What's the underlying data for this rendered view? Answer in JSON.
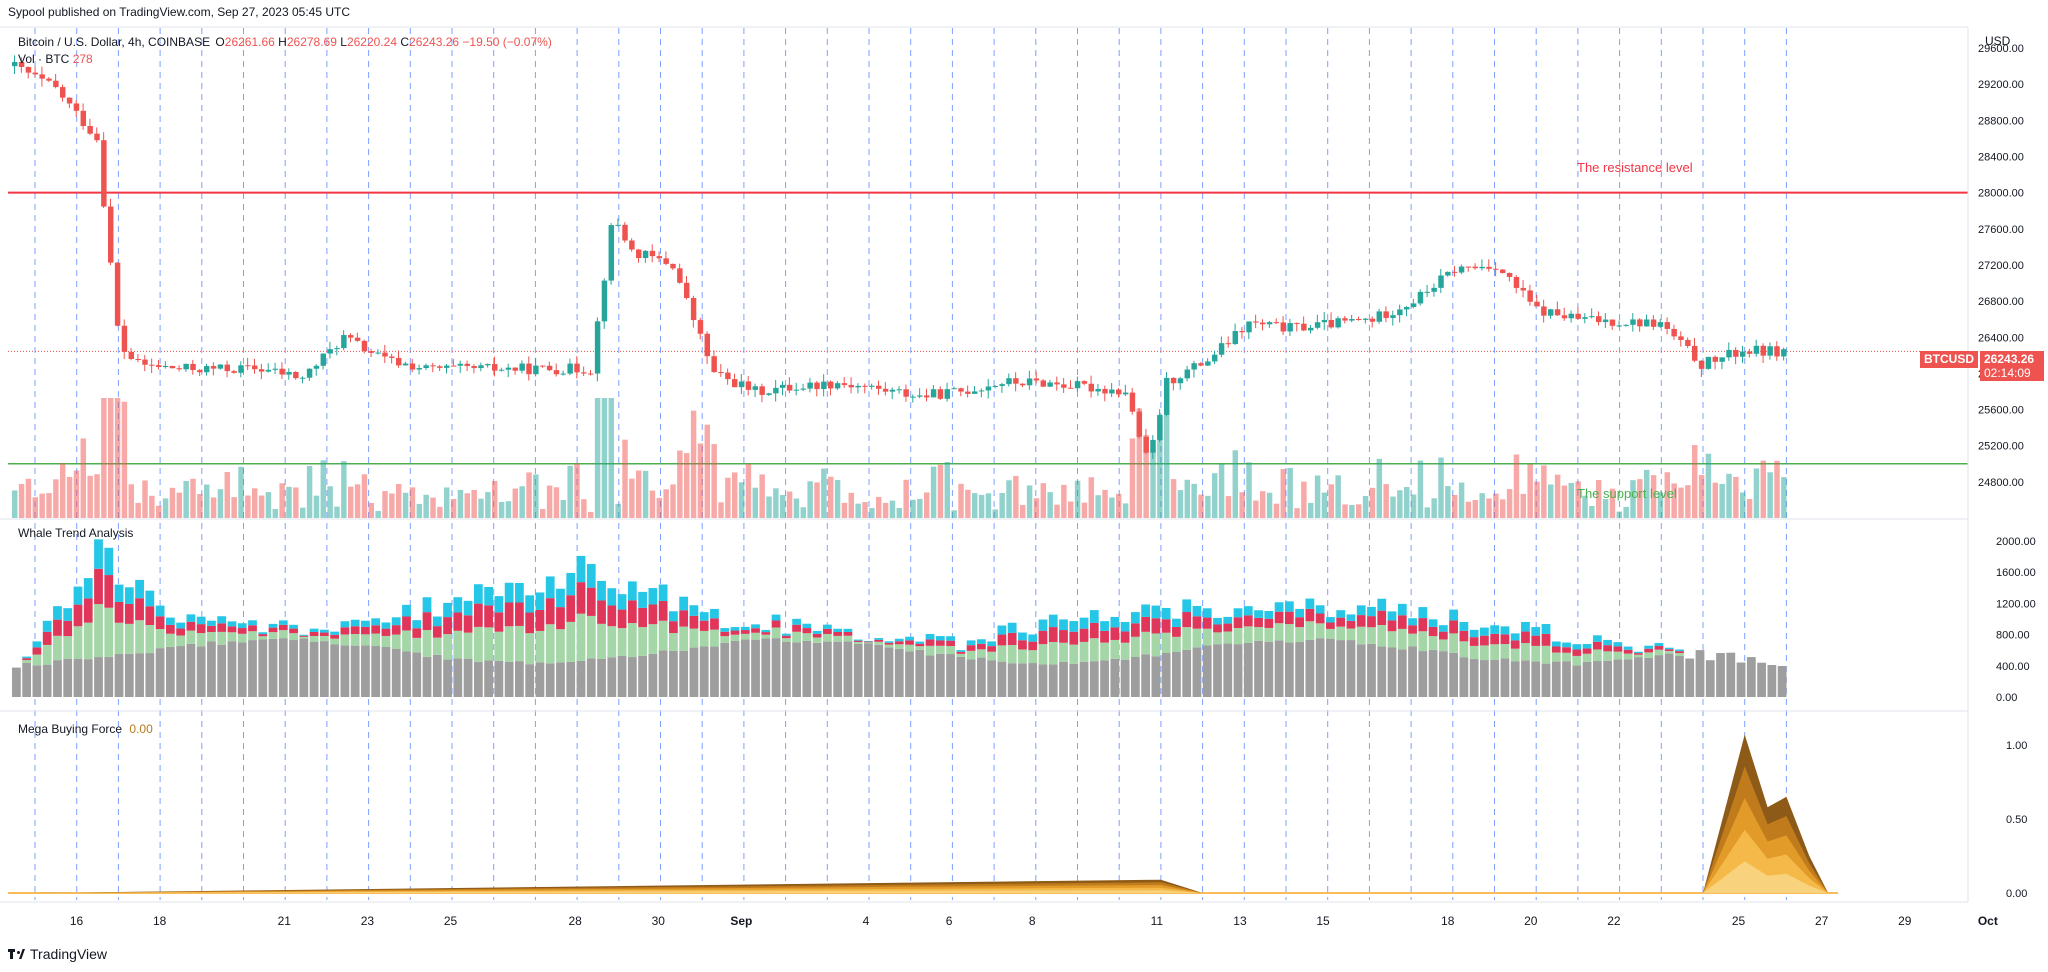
{
  "publisher": "Sypool published on TradingView.com, Sep 27, 2023 05:45 UTC",
  "legend": {
    "symbol": "Bitcoin / U.S. Dollar, 4h, COINBASE",
    "o_label": "O",
    "o": "26261.66",
    "h_label": "H",
    "h": "26278.69",
    "l_label": "L",
    "l": "26220.24",
    "c_label": "C",
    "c": "26243.26",
    "change": "−19.50 (−0.07%)",
    "vol_label": "Vol · BTC",
    "vol": "278"
  },
  "currency": "USD",
  "price_tag": {
    "symbol": "BTCUSD",
    "price": "26243.26",
    "countdown": "02:14:09"
  },
  "annotations": {
    "resistance": "The resistance level",
    "support": "The support level"
  },
  "panes": {
    "whale_title": "Whale Trend Analysis",
    "mega_title": "Mega Buying Force",
    "mega_value": "0.00"
  },
  "brand": "TradingView",
  "colors": {
    "up": "#26a69a",
    "down": "#ef5350",
    "resistance": "#f23645",
    "support": "#4caf50",
    "whale_gray": "#9e9e9e",
    "whale_green": "#a5d6a7",
    "whale_red": "#e0365a",
    "whale_cyan": "#26c6e6",
    "mega": "#f5a623",
    "price_line": "#ef5350",
    "vline": "#2962ff"
  },
  "chart_data": [
    {
      "type": "candlestick",
      "title": "Bitcoin / U.S. Dollar, 4h, COINBASE",
      "interval": "4h",
      "ylim": [
        24400,
        29800
      ],
      "y_ticks": [
        "29600.00",
        "29200.00",
        "28800.00",
        "28400.00",
        "28000.00",
        "27600.00",
        "27200.00",
        "26800.00",
        "26400.00",
        "26000.00",
        "25600.00",
        "25200.00",
        "24800.00"
      ],
      "x_ticks": [
        "16",
        "18",
        "21",
        "23",
        "25",
        "28",
        "30",
        "Sep",
        "4",
        "6",
        "8",
        "11",
        "13",
        "15",
        "18",
        "20",
        "22",
        "25",
        "27",
        "29",
        "Oct"
      ],
      "resistance_level": 28000,
      "support_level": 25000,
      "last_price": 26243.26,
      "close_path": [
        {
          "date": "Aug 15",
          "close": 29400
        },
        {
          "date": "Aug 16",
          "close": 29150
        },
        {
          "date": "Aug 17",
          "close": 28600
        },
        {
          "date": "Aug 17 late",
          "close": 26300
        },
        {
          "date": "Aug 18",
          "close": 26100
        },
        {
          "date": "Aug 19",
          "close": 26050
        },
        {
          "date": "Aug 21",
          "close": 26050
        },
        {
          "date": "Aug 22",
          "close": 25950
        },
        {
          "date": "Aug 23",
          "close": 26400
        },
        {
          "date": "Aug 24",
          "close": 26150
        },
        {
          "date": "Aug 25",
          "close": 26050
        },
        {
          "date": "Aug 27",
          "close": 26050
        },
        {
          "date": "Aug 29",
          "close": 26050
        },
        {
          "date": "Aug 29 late",
          "close": 27750
        },
        {
          "date": "Aug 30",
          "close": 27350
        },
        {
          "date": "Aug 31",
          "close": 27200
        },
        {
          "date": "Sep 1",
          "close": 26000
        },
        {
          "date": "Sep 2",
          "close": 25800
        },
        {
          "date": "Sep 4",
          "close": 25900
        },
        {
          "date": "Sep 6",
          "close": 25750
        },
        {
          "date": "Sep 7",
          "close": 25800
        },
        {
          "date": "Sep 8",
          "close": 25900
        },
        {
          "date": "Sep 9",
          "close": 25900
        },
        {
          "date": "Sep 11",
          "close": 25800
        },
        {
          "date": "Sep 11 late",
          "close": 25000
        },
        {
          "date": "Sep 12",
          "close": 25900
        },
        {
          "date": "Sep 13",
          "close": 26150
        },
        {
          "date": "Sep 14",
          "close": 26550
        },
        {
          "date": "Sep 15",
          "close": 26500
        },
        {
          "date": "Sep 17",
          "close": 26600
        },
        {
          "date": "Sep 18",
          "close": 26800
        },
        {
          "date": "Sep 19",
          "close": 27150
        },
        {
          "date": "Sep 20",
          "close": 27200
        },
        {
          "date": "Sep 21",
          "close": 26700
        },
        {
          "date": "Sep 22",
          "close": 26600
        },
        {
          "date": "Sep 24",
          "close": 26550
        },
        {
          "date": "Sep 25",
          "close": 26100
        },
        {
          "date": "Sep 26",
          "close": 26250
        },
        {
          "date": "Sep 27",
          "close": 26243.26
        }
      ]
    },
    {
      "type": "bar",
      "title": "Vol · BTC",
      "note": "volume histogram shown at bottom of price pane, colored by candle direction",
      "peaks": [
        {
          "date": "Aug 17",
          "value": "largest (red)"
        },
        {
          "date": "Aug 29",
          "value": "large (green)"
        },
        {
          "date": "Sep 1",
          "value": "large (red)"
        },
        {
          "date": "Sep 11",
          "value": "large (red/green)"
        }
      ]
    },
    {
      "type": "bar",
      "title": "Whale Trend Analysis",
      "ylim": [
        0,
        2200
      ],
      "y_ticks": [
        "2000.00",
        "1600.00",
        "1200.00",
        "800.00",
        "400.00",
        "0.00"
      ],
      "series": [
        {
          "name": "gray",
          "color": "#9e9e9e"
        },
        {
          "name": "green",
          "color": "#a5d6a7"
        },
        {
          "name": "red",
          "color": "#e0365a"
        },
        {
          "name": "cyan",
          "color": "#26c6e6"
        }
      ],
      "key_points": [
        {
          "date": "Aug 15",
          "total": 350
        },
        {
          "date": "Aug 17",
          "total": 1900
        },
        {
          "date": "Aug 19",
          "total": 1000
        },
        {
          "date": "Aug 23",
          "total": 900
        },
        {
          "date": "Aug 29",
          "total": 1700
        },
        {
          "date": "Sep 1",
          "total": 1050
        },
        {
          "date": "Sep 7",
          "total": 700
        },
        {
          "date": "Sep 8",
          "total": 880
        },
        {
          "date": "Sep 12",
          "total": 1180
        },
        {
          "date": "Sep 18",
          "total": 1150
        },
        {
          "date": "Sep 20",
          "total": 950
        },
        {
          "date": "Sep 25",
          "total": 560
        },
        {
          "date": "Sep 27",
          "total": 450
        }
      ]
    },
    {
      "type": "area",
      "title": "Mega Buying Force",
      "ylim": [
        -0.05,
        1.2
      ],
      "y_ticks": [
        "1.00",
        "0.50",
        "0.00"
      ],
      "points": [
        {
          "date": "Aug 15",
          "value": 0.0
        },
        {
          "date": "Sep 11",
          "value": 0.09
        },
        {
          "date": "Sep 12",
          "value": 0.0
        },
        {
          "date": "Sep 24",
          "value": 0.0
        },
        {
          "date": "Sep 25",
          "value": 1.07
        },
        {
          "date": "Sep 25 late",
          "value": 0.58
        },
        {
          "date": "Sep 26",
          "value": 0.65
        },
        {
          "date": "Sep 26 late",
          "value": 0.25
        },
        {
          "date": "Sep 27",
          "value": 0.0
        }
      ]
    }
  ]
}
